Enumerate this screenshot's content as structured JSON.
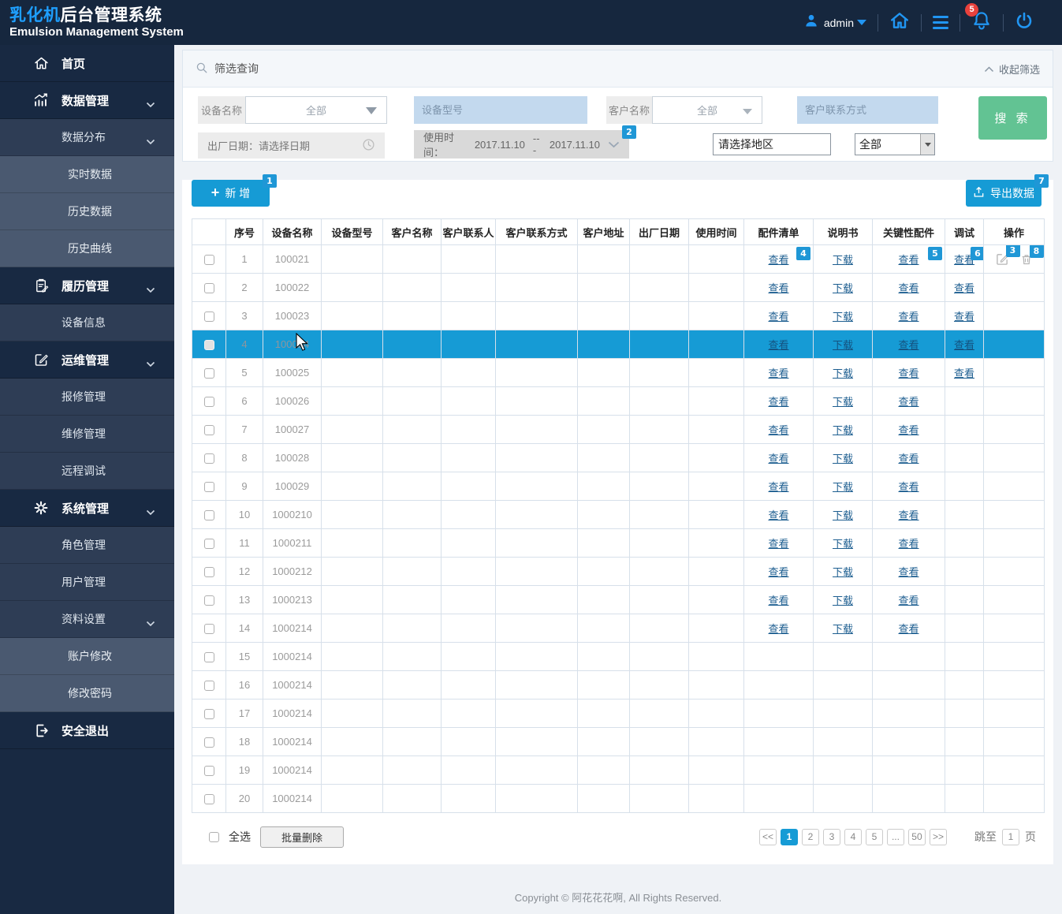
{
  "header": {
    "title_highlight": "乳化机",
    "title_rest": "后台管理系统",
    "subtitle": "Emulsion Management System",
    "user_name": "admin",
    "notification_count": "5"
  },
  "sidebar": {
    "items": [
      {
        "label": "首页",
        "icon": "home",
        "level": 0
      },
      {
        "label": "数据管理",
        "icon": "chart",
        "level": 0,
        "expandable": true
      },
      {
        "label": "数据分布",
        "level": 1,
        "expandable": true
      },
      {
        "label": "实时数据",
        "level": 2
      },
      {
        "label": "历史数据",
        "level": 2
      },
      {
        "label": "历史曲线",
        "level": 2
      },
      {
        "label": "履历管理",
        "icon": "clipboard",
        "level": 0,
        "expandable": true
      },
      {
        "label": "设备信息",
        "level": 1
      },
      {
        "label": "运维管理",
        "icon": "edit-square",
        "level": 0,
        "expandable": true
      },
      {
        "label": "报修管理",
        "level": 1
      },
      {
        "label": "维修管理",
        "level": 1
      },
      {
        "label": "远程调试",
        "level": 1
      },
      {
        "label": "系统管理",
        "icon": "gear",
        "level": 0,
        "expandable": true
      },
      {
        "label": "角色管理",
        "level": 1
      },
      {
        "label": "用户管理",
        "level": 1
      },
      {
        "label": "资料设置",
        "level": 1,
        "expandable": true
      },
      {
        "label": "账户修改",
        "level": 2
      },
      {
        "label": "修改密码",
        "level": 2
      },
      {
        "label": "安全退出",
        "icon": "logout",
        "level": 0
      }
    ]
  },
  "filter": {
    "panel_title": "筛选查询",
    "collapse_label": "收起筛选",
    "device_name_label": "设备名称",
    "device_name_value": "全部",
    "device_model_placeholder": "设备型号",
    "customer_name_label": "客户名称",
    "customer_name_value": "全部",
    "customer_contact_placeholder": "客户联系方式",
    "factory_date_label": "出厂日期：",
    "factory_date_placeholder": "请选择日期",
    "usage_time_label": "使用时间：",
    "usage_time_from": "2017.11.10",
    "usage_time_separator": "---",
    "usage_time_to": "2017.11.10",
    "region_placeholder": "请选择地区",
    "region_all_value": "全部",
    "search_button_label": "搜 索"
  },
  "toolbar": {
    "add_button_label": "新 增",
    "export_button_label": "导出数据"
  },
  "markers": {
    "add": "1",
    "usage_time": "2",
    "edit": "3",
    "parts": "4",
    "key_parts": "5",
    "debug": "6",
    "export": "7",
    "delete": "8"
  },
  "table": {
    "headers": [
      "",
      "序号",
      "设备名称",
      "设备型号",
      "客户名称",
      "客户联系人",
      "客户联系方式",
      "客户地址",
      "出厂日期",
      "使用时间",
      "配件清单",
      "说明书",
      "关键性配件",
      "调试",
      "操作"
    ],
    "view_label": "查看",
    "download_label": "下载",
    "rows": [
      {
        "no": "1",
        "device": "100021",
        "parts": true,
        "manual": true,
        "key": true,
        "debug": true,
        "ops": true,
        "marked": true
      },
      {
        "no": "2",
        "device": "100022",
        "parts": true,
        "manual": true,
        "key": true,
        "debug": true
      },
      {
        "no": "3",
        "device": "100023",
        "parts": true,
        "manual": true,
        "key": true,
        "debug": true
      },
      {
        "no": "4",
        "device": "100024",
        "parts": true,
        "manual": true,
        "key": true,
        "debug": true,
        "selected": true
      },
      {
        "no": "5",
        "device": "100025",
        "parts": true,
        "manual": true,
        "key": true,
        "debug": true
      },
      {
        "no": "6",
        "device": "100026",
        "parts": true,
        "manual": true,
        "key": true
      },
      {
        "no": "7",
        "device": "100027",
        "parts": true,
        "manual": true,
        "key": true
      },
      {
        "no": "8",
        "device": "100028",
        "parts": true,
        "manual": true,
        "key": true
      },
      {
        "no": "9",
        "device": "100029",
        "parts": true,
        "manual": true,
        "key": true
      },
      {
        "no": "10",
        "device": "1000210",
        "parts": true,
        "manual": true,
        "key": true
      },
      {
        "no": "11",
        "device": "1000211",
        "parts": true,
        "manual": true,
        "key": true
      },
      {
        "no": "12",
        "device": "1000212",
        "parts": true,
        "manual": true,
        "key": true
      },
      {
        "no": "13",
        "device": "1000213",
        "parts": true,
        "manual": true,
        "key": true
      },
      {
        "no": "14",
        "device": "1000214",
        "parts": true,
        "manual": true,
        "key": true
      },
      {
        "no": "15",
        "device": "1000214"
      },
      {
        "no": "16",
        "device": "1000214"
      },
      {
        "no": "17",
        "device": "1000214"
      },
      {
        "no": "18",
        "device": "1000214"
      },
      {
        "no": "19",
        "device": "1000214"
      },
      {
        "no": "20",
        "device": "1000214"
      }
    ]
  },
  "table_footer": {
    "select_all_label": "全选",
    "batch_delete_label": "批量删除",
    "pages": [
      "<<",
      "1",
      "2",
      "3",
      "4",
      "5",
      "...",
      "50",
      ">>"
    ],
    "active_page": "1",
    "jump_label": "跳至",
    "jump_value": "1",
    "jump_unit": "页"
  },
  "footer": {
    "copyright": "Copyright © 阿花花花啊, All Rights Reserved."
  },
  "colors": {
    "header_navy": "#16273e",
    "submenu_navy": "#2e3d55",
    "submenu_light": "#4a5970",
    "accent_blue": "#169bd5",
    "icon_blue": "#2196f3",
    "link_blue": "#1d5e90",
    "search_green": "#62c393",
    "badge_red": "#e8413c",
    "input_blue": "#c3d9ee"
  }
}
